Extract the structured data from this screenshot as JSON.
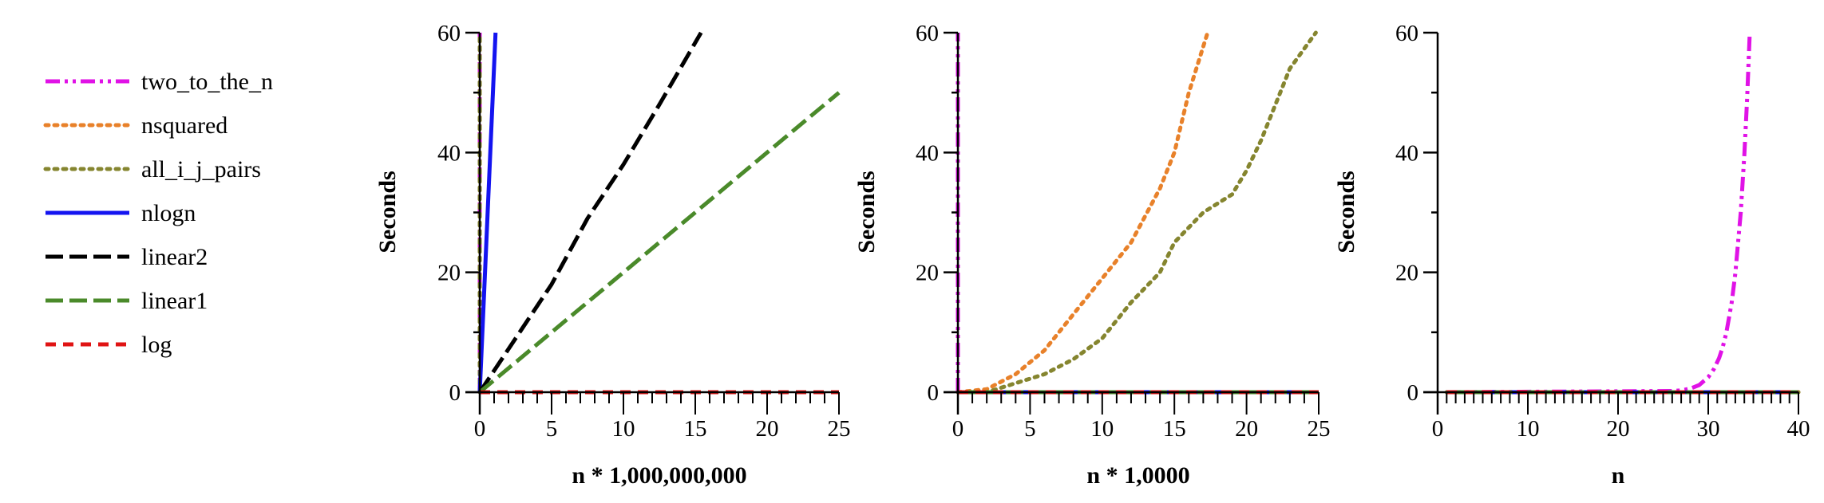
{
  "legend": {
    "placement": "left",
    "entries": [
      {
        "name": "two_to_the_n",
        "color": "#e012e6",
        "style": "dash-dot-dot"
      },
      {
        "name": "nsquared",
        "color": "#e8812a",
        "style": "dotted"
      },
      {
        "name": "all_i_j_pairs",
        "color": "#85852f",
        "style": "dotted"
      },
      {
        "name": "nlogn",
        "color": "#1414f0",
        "style": "solid"
      },
      {
        "name": "linear2",
        "color": "#000000",
        "style": "long-dash"
      },
      {
        "name": "linear1",
        "color": "#4a8a2a",
        "style": "long-dash"
      },
      {
        "name": "log",
        "color": "#e01414",
        "style": "dash"
      }
    ]
  },
  "chart_data": [
    {
      "type": "line",
      "xlabel": "n * 1,000,000,000",
      "ylabel": "Seconds",
      "xlim": [
        0,
        25
      ],
      "ylim": [
        0,
        60
      ],
      "xticks": [
        0,
        5,
        10,
        15,
        20,
        25
      ],
      "xminor": 1,
      "yticks": [
        0,
        20,
        40,
        60
      ],
      "yminor": 10,
      "grid": false,
      "series": [
        {
          "name": "two_to_the_n",
          "x": [
            0,
            0
          ],
          "y": [
            0,
            60
          ]
        },
        {
          "name": "nsquared",
          "x": [
            0,
            0
          ],
          "y": [
            0,
            60
          ]
        },
        {
          "name": "all_i_j_pairs",
          "x": [
            0,
            0
          ],
          "y": [
            0,
            60
          ]
        },
        {
          "name": "nlogn",
          "x": [
            0,
            1.1
          ],
          "y": [
            0,
            60
          ]
        },
        {
          "name": "linear2",
          "x": [
            0,
            5,
            7.5,
            10,
            12.5,
            15.4
          ],
          "y": [
            0,
            18,
            29,
            38,
            48,
            60
          ]
        },
        {
          "name": "linear1",
          "x": [
            0,
            5,
            10,
            15,
            20,
            25
          ],
          "y": [
            0,
            10,
            20,
            30,
            40,
            50
          ]
        },
        {
          "name": "log",
          "x": [
            0,
            25
          ],
          "y": [
            0,
            0
          ]
        }
      ]
    },
    {
      "type": "line",
      "xlabel": "n * 1,0000",
      "ylabel": "Seconds",
      "xlim": [
        0,
        25
      ],
      "ylim": [
        0,
        60
      ],
      "xticks": [
        0,
        5,
        10,
        15,
        20,
        25
      ],
      "xminor": 1,
      "yticks": [
        0,
        20,
        40,
        60
      ],
      "yminor": 10,
      "grid": false,
      "series": [
        {
          "name": "two_to_the_n",
          "x": [
            0,
            0
          ],
          "y": [
            0,
            60
          ]
        },
        {
          "name": "nsquared",
          "x": [
            0,
            2,
            4,
            6,
            8,
            10,
            12,
            14,
            15,
            16,
            17.3
          ],
          "y": [
            0,
            0.5,
            3,
            7,
            13,
            19,
            25,
            34,
            40,
            50,
            60
          ]
        },
        {
          "name": "all_i_j_pairs",
          "x": [
            0,
            2,
            4,
            6,
            8,
            10,
            12,
            14,
            15,
            17,
            19,
            20,
            21,
            22,
            23,
            24.8
          ],
          "y": [
            0,
            0,
            1.5,
            3,
            5.5,
            9,
            15,
            20,
            25,
            30,
            33,
            37,
            42,
            48,
            54,
            60
          ]
        },
        {
          "name": "nlogn",
          "x": [
            0,
            25
          ],
          "y": [
            0,
            0
          ]
        },
        {
          "name": "linear2",
          "x": [
            0,
            25
          ],
          "y": [
            0,
            0
          ]
        },
        {
          "name": "linear1",
          "x": [
            0,
            25
          ],
          "y": [
            0,
            0
          ]
        },
        {
          "name": "log",
          "x": [
            0,
            25
          ],
          "y": [
            0,
            0
          ]
        }
      ]
    },
    {
      "type": "line",
      "xlabel": "n",
      "ylabel": "Seconds",
      "xlim": [
        0,
        40
      ],
      "ylim": [
        0,
        60
      ],
      "xticks": [
        0,
        10,
        20,
        30,
        40
      ],
      "xminor": 1,
      "yticks": [
        0,
        20,
        40,
        60
      ],
      "yminor": 10,
      "grid": false,
      "series": [
        {
          "name": "two_to_the_n",
          "x": [
            1,
            26,
            27,
            28,
            29,
            30,
            30.6,
            31.2,
            31.6,
            32,
            32.6,
            33,
            33.6,
            34,
            34.3,
            34.6
          ],
          "y": [
            0,
            0.2,
            0.3,
            0.6,
            1.2,
            2.5,
            3.8,
            5.7,
            7.5,
            9.9,
            15,
            19.8,
            30,
            39.6,
            48.7,
            60
          ]
        },
        {
          "name": "nsquared",
          "x": [
            1,
            40
          ],
          "y": [
            0,
            0
          ]
        },
        {
          "name": "all_i_j_pairs",
          "x": [
            1,
            40
          ],
          "y": [
            0,
            0
          ]
        },
        {
          "name": "nlogn",
          "x": [
            1,
            40
          ],
          "y": [
            0,
            0
          ]
        },
        {
          "name": "linear2",
          "x": [
            1,
            40
          ],
          "y": [
            0,
            0
          ]
        },
        {
          "name": "linear1",
          "x": [
            1,
            40
          ],
          "y": [
            0,
            0
          ]
        },
        {
          "name": "log",
          "x": [
            1,
            40
          ],
          "y": [
            0,
            0
          ]
        }
      ]
    }
  ]
}
